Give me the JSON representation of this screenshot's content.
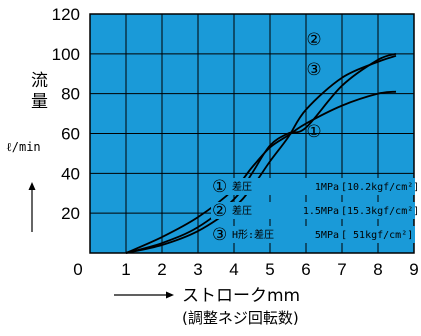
{
  "chart_data": {
    "type": "line",
    "ylabel": "流\n量",
    "yunit": "ℓ/min",
    "xlabel": "ストロークmm",
    "xsublabel": "(調整ネジ回転数)",
    "xlim": [
      0,
      9
    ],
    "ylim": [
      0,
      120
    ],
    "x_ticks": [
      "0",
      "1",
      "2",
      "3",
      "4",
      "5",
      "6",
      "7",
      "8",
      "9"
    ],
    "y_ticks": [
      "20",
      "40",
      "60",
      "80",
      "100",
      "120"
    ],
    "grid": true,
    "background_color": "#1a9ad8",
    "line_color": "#000000",
    "series": [
      {
        "name": "①",
        "legend": "① 差圧 1MPa [10.2kgf/cm²]",
        "x": [
          1,
          2,
          3,
          4,
          4.5,
          5,
          5.5,
          6,
          7,
          8,
          8.5
        ],
        "y": [
          0,
          8,
          18,
          32,
          43,
          53,
          59,
          65,
          74,
          80,
          81
        ]
      },
      {
        "name": "②",
        "legend": "② 差圧 1.5MPa [15.3kgf/cm²]",
        "x": [
          1,
          2,
          3,
          4,
          4.5,
          5,
          5.5,
          6,
          7,
          8,
          8.5
        ],
        "y": [
          0,
          5,
          13,
          27,
          40,
          54,
          60,
          63,
          84,
          97,
          100
        ]
      },
      {
        "name": "③",
        "legend": "③ H形:差圧 5MPa [ 51kgf/cm²]",
        "x": [
          1,
          2,
          3,
          4,
          4.5,
          5,
          5.5,
          6,
          7,
          8,
          8.5
        ],
        "y": [
          0,
          4,
          11,
          23,
          33,
          46,
          58,
          72,
          88,
          96,
          99
        ]
      }
    ],
    "legend_entries": [
      {
        "mark": "①",
        "label": "差圧",
        "value": "1MPa",
        "unit": "[10.2kgf/cm²]"
      },
      {
        "mark": "②",
        "label": "差圧",
        "value": "1.5MPa",
        "unit": "[15.3kgf/cm²]"
      },
      {
        "mark": "③",
        "label": "H形:差圧",
        "value": "5MPa",
        "unit": "[ 51kgf/cm²]"
      }
    ],
    "end_labels": [
      "②",
      "③",
      "①"
    ]
  }
}
